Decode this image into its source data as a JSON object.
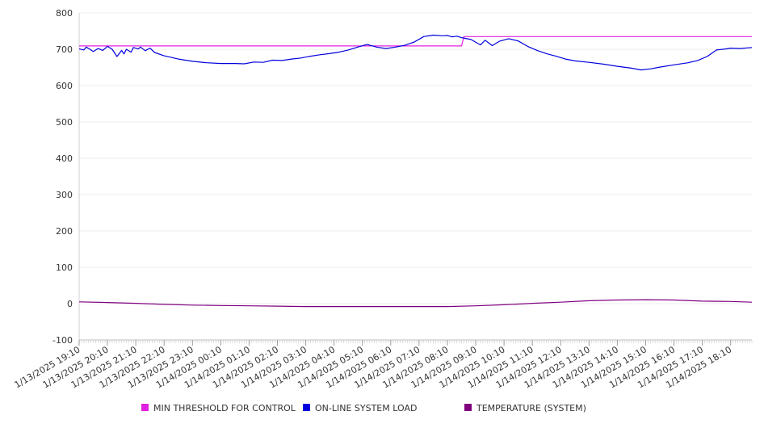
{
  "chart_data": {
    "type": "line",
    "title": "",
    "xlabel": "",
    "ylabel": "",
    "ylim": [
      -100,
      800
    ],
    "y_ticks": [
      -100,
      0,
      100,
      200,
      300,
      400,
      500,
      600,
      700,
      800
    ],
    "x_range": [
      "1/13/2025 19:10",
      "1/14/2025 18:55"
    ],
    "x_ticks": [
      "1/13/2025 19:10",
      "1/13/2025 20:10",
      "1/13/2025 21:10",
      "1/13/2025 22:10",
      "1/13/2025 23:10",
      "1/14/2025 00:10",
      "1/14/2025 01:10",
      "1/14/2025 02:10",
      "1/14/2025 03:10",
      "1/14/2025 04:10",
      "1/14/2025 05:10",
      "1/14/2025 06:10",
      "1/14/2025 07:10",
      "1/14/2025 08:10",
      "1/14/2025 09:10",
      "1/14/2025 10:10",
      "1/14/2025 11:10",
      "1/14/2025 12:10",
      "1/14/2025 13:10",
      "1/14/2025 14:10",
      "1/14/2025 15:10",
      "1/14/2025 16:10",
      "1/14/2025 17:10",
      "1/14/2025 18:10"
    ],
    "grid": "horizontal",
    "legend_position": "bottom",
    "series": [
      {
        "name": "MIN THRESHOLD FOR CONTROL",
        "color": "#e020e0",
        "points": [
          [
            "1/13/2025 19:10",
            709
          ],
          [
            "1/14/2025 08:40",
            709
          ],
          [
            "1/14/2025 08:45",
            735
          ],
          [
            "1/14/2025 18:55",
            735
          ]
        ]
      },
      {
        "name": "ON-LINE SYSTEM LOAD",
        "color": "#0000dd",
        "points": [
          [
            "1/13/2025 19:10",
            701
          ],
          [
            "1/13/2025 19:20",
            698
          ],
          [
            "1/13/2025 19:25",
            706
          ],
          [
            "1/13/2025 19:40",
            694
          ],
          [
            "1/13/2025 19:50",
            702
          ],
          [
            "1/13/2025 20:00",
            697
          ],
          [
            "1/13/2025 20:10",
            708
          ],
          [
            "1/13/2025 20:20",
            700
          ],
          [
            "1/13/2025 20:30",
            680
          ],
          [
            "1/13/2025 20:40",
            697
          ],
          [
            "1/13/2025 20:45",
            687
          ],
          [
            "1/13/2025 20:50",
            700
          ],
          [
            "1/13/2025 21:00",
            692
          ],
          [
            "1/13/2025 21:05",
            705
          ],
          [
            "1/13/2025 21:15",
            701
          ],
          [
            "1/13/2025 21:20",
            706
          ],
          [
            "1/13/2025 21:30",
            696
          ],
          [
            "1/13/2025 21:40",
            703
          ],
          [
            "1/13/2025 21:50",
            691
          ],
          [
            "1/13/2025 22:10",
            682
          ],
          [
            "1/13/2025 22:40",
            673
          ],
          [
            "1/13/2025 23:10",
            667
          ],
          [
            "1/13/2025 23:40",
            663
          ],
          [
            "1/14/2025 00:10",
            661
          ],
          [
            "1/14/2025 00:40",
            661
          ],
          [
            "1/14/2025 01:00",
            660
          ],
          [
            "1/14/2025 01:20",
            665
          ],
          [
            "1/14/2025 01:40",
            664
          ],
          [
            "1/14/2025 02:00",
            670
          ],
          [
            "1/14/2025 02:20",
            669
          ],
          [
            "1/14/2025 02:40",
            673
          ],
          [
            "1/14/2025 03:00",
            676
          ],
          [
            "1/14/2025 03:20",
            681
          ],
          [
            "1/14/2025 03:40",
            685
          ],
          [
            "1/14/2025 04:00",
            688
          ],
          [
            "1/14/2025 04:20",
            692
          ],
          [
            "1/14/2025 04:40",
            698
          ],
          [
            "1/14/2025 05:00",
            706
          ],
          [
            "1/14/2025 05:20",
            713
          ],
          [
            "1/14/2025 05:40",
            706
          ],
          [
            "1/14/2025 06:00",
            702
          ],
          [
            "1/14/2025 06:20",
            706
          ],
          [
            "1/14/2025 06:40",
            711
          ],
          [
            "1/14/2025 07:00",
            720
          ],
          [
            "1/14/2025 07:20",
            735
          ],
          [
            "1/14/2025 07:40",
            739
          ],
          [
            "1/14/2025 08:00",
            737
          ],
          [
            "1/14/2025 08:10",
            738
          ],
          [
            "1/14/2025 08:20",
            734
          ],
          [
            "1/14/2025 08:30",
            736
          ],
          [
            "1/14/2025 08:40",
            732
          ],
          [
            "1/14/2025 09:00",
            727
          ],
          [
            "1/14/2025 09:20",
            712
          ],
          [
            "1/14/2025 09:30",
            725
          ],
          [
            "1/14/2025 09:45",
            710
          ],
          [
            "1/14/2025 10:00",
            722
          ],
          [
            "1/14/2025 10:20",
            729
          ],
          [
            "1/14/2025 10:40",
            723
          ],
          [
            "1/14/2025 11:00",
            708
          ],
          [
            "1/14/2025 11:20",
            697
          ],
          [
            "1/14/2025 11:40",
            688
          ],
          [
            "1/14/2025 12:00",
            681
          ],
          [
            "1/14/2025 12:20",
            673
          ],
          [
            "1/14/2025 12:40",
            668
          ],
          [
            "1/14/2025 13:10",
            664
          ],
          [
            "1/14/2025 13:40",
            659
          ],
          [
            "1/14/2025 14:10",
            653
          ],
          [
            "1/14/2025 14:40",
            648
          ],
          [
            "1/14/2025 15:00",
            643
          ],
          [
            "1/14/2025 15:20",
            646
          ],
          [
            "1/14/2025 15:40",
            651
          ],
          [
            "1/14/2025 16:10",
            657
          ],
          [
            "1/14/2025 16:40",
            663
          ],
          [
            "1/14/2025 17:00",
            669
          ],
          [
            "1/14/2025 17:20",
            680
          ],
          [
            "1/14/2025 17:40",
            698
          ],
          [
            "1/14/2025 18:00",
            701
          ],
          [
            "1/14/2025 18:10",
            703
          ],
          [
            "1/14/2025 18:30",
            702
          ],
          [
            "1/14/2025 18:55",
            705
          ]
        ]
      },
      {
        "name": "TEMPERATURE (SYSTEM)",
        "color": "#800080",
        "points": [
          [
            "1/13/2025 19:10",
            5
          ],
          [
            "1/13/2025 20:10",
            3
          ],
          [
            "1/13/2025 21:10",
            1
          ],
          [
            "1/13/2025 22:10",
            -2
          ],
          [
            "1/13/2025 23:10",
            -4
          ],
          [
            "1/14/2025 00:10",
            -5
          ],
          [
            "1/14/2025 01:10",
            -6
          ],
          [
            "1/14/2025 02:10",
            -7
          ],
          [
            "1/14/2025 03:10",
            -8
          ],
          [
            "1/14/2025 04:10",
            -8
          ],
          [
            "1/14/2025 05:10",
            -8
          ],
          [
            "1/14/2025 06:10",
            -8
          ],
          [
            "1/14/2025 07:10",
            -8
          ],
          [
            "1/14/2025 08:10",
            -8
          ],
          [
            "1/14/2025 09:10",
            -6
          ],
          [
            "1/14/2025 10:10",
            -3
          ],
          [
            "1/14/2025 11:10",
            1
          ],
          [
            "1/14/2025 12:10",
            4
          ],
          [
            "1/14/2025 13:10",
            8
          ],
          [
            "1/14/2025 14:10",
            10
          ],
          [
            "1/14/2025 15:10",
            11
          ],
          [
            "1/14/2025 16:10",
            10
          ],
          [
            "1/14/2025 17:10",
            7
          ],
          [
            "1/14/2025 18:10",
            6
          ],
          [
            "1/14/2025 18:55",
            4
          ]
        ]
      }
    ]
  }
}
